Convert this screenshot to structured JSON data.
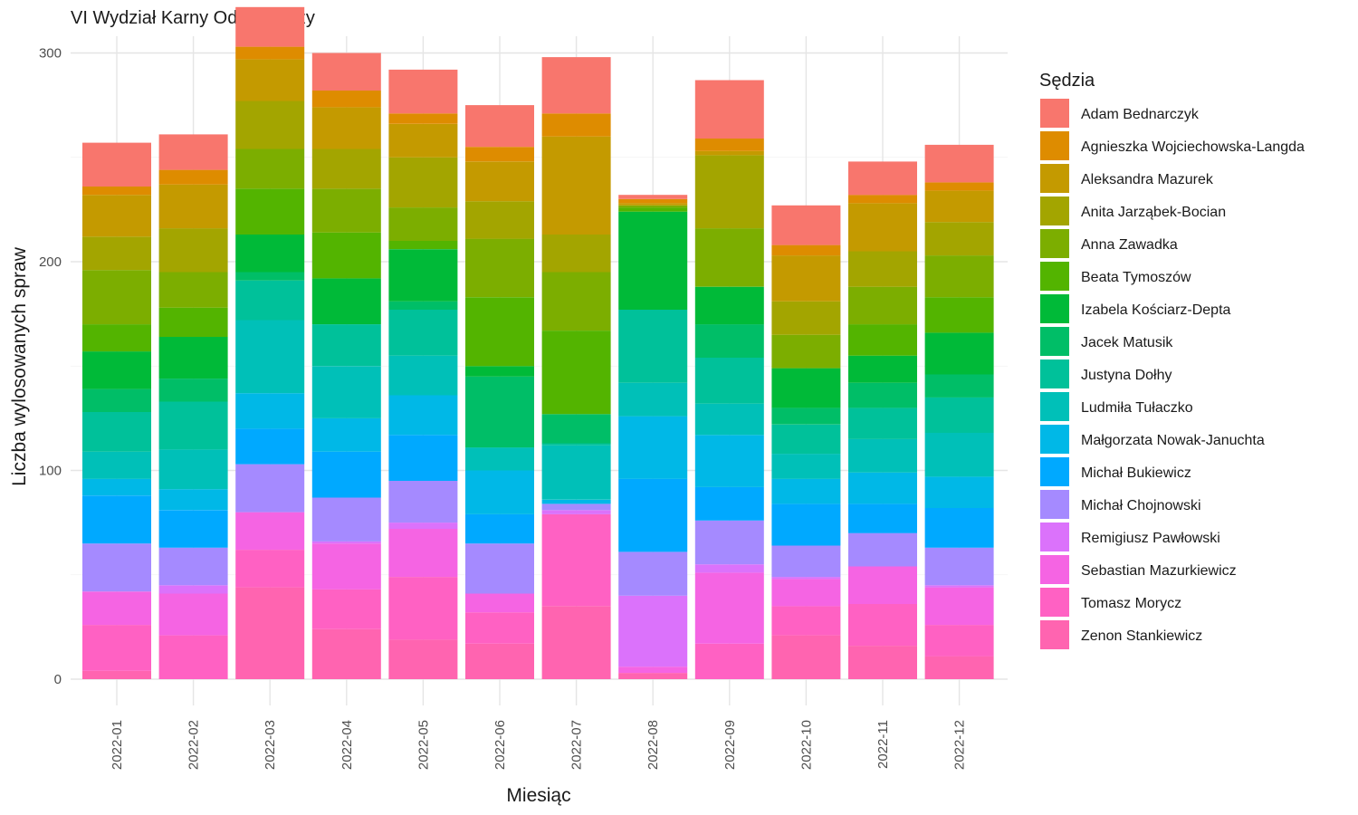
{
  "chart_data": {
    "type": "bar",
    "stacked": true,
    "title": "VI Wydział Karny Odwoławczy",
    "xlabel": "Miesiąc",
    "ylabel": "Liczba wylosowanych spraw",
    "ylim": [
      0,
      310
    ],
    "yticks": [
      0,
      100,
      200,
      300
    ],
    "grid": true,
    "legend_title": "Sędzia",
    "legend_position": "right",
    "categories": [
      "2022-01",
      "2022-02",
      "2022-03",
      "2022-04",
      "2022-05",
      "2022-06",
      "2022-07",
      "2022-08",
      "2022-09",
      "2022-10",
      "2022-11",
      "2022-12"
    ],
    "series": [
      {
        "name": "Zenon Stankiewicz",
        "color": "#FF64B0",
        "values": [
          4,
          0,
          44,
          24,
          19,
          17,
          35,
          3,
          0,
          21,
          16,
          11
        ]
      },
      {
        "name": "Tomasz Morycz",
        "color": "#FF61C3",
        "values": [
          22,
          21,
          18,
          19,
          30,
          15,
          44,
          0,
          17,
          14,
          20,
          15
        ]
      },
      {
        "name": "Sebastian Mazurkiewicz",
        "color": "#F564E3",
        "values": [
          16,
          20,
          18,
          22,
          23,
          9,
          0,
          3,
          34,
          13,
          18,
          18
        ]
      },
      {
        "name": "Remigiusz Pawłowski",
        "color": "#DB72FB",
        "values": [
          0,
          4,
          0,
          1,
          3,
          0,
          2,
          34,
          4,
          1,
          0,
          1
        ]
      },
      {
        "name": "Michał Chojnowski",
        "color": "#A58AFF",
        "values": [
          23,
          18,
          23,
          21,
          20,
          24,
          3,
          21,
          21,
          15,
          16,
          18
        ]
      },
      {
        "name": "Michał Bukiewicz",
        "color": "#00A9FF",
        "values": [
          23,
          18,
          17,
          22,
          22,
          14,
          0,
          35,
          16,
          20,
          14,
          19
        ]
      },
      {
        "name": "Małgorzata Nowak-Januchta",
        "color": "#00B8E7",
        "values": [
          8,
          10,
          17,
          16,
          19,
          21,
          2,
          30,
          25,
          12,
          15,
          15
        ]
      },
      {
        "name": "Ludmiła Tułaczko",
        "color": "#00C0B8",
        "values": [
          13,
          19,
          35,
          25,
          19,
          11,
          26,
          16,
          15,
          12,
          16,
          21
        ]
      },
      {
        "name": "Justyna Dołhy",
        "color": "#00C19A",
        "values": [
          19,
          23,
          19,
          20,
          22,
          0,
          1,
          35,
          22,
          14,
          15,
          17
        ]
      },
      {
        "name": "Jacek Matusik",
        "color": "#00BE67",
        "values": [
          11,
          11,
          4,
          0,
          4,
          34,
          14,
          0,
          16,
          8,
          12,
          11
        ]
      },
      {
        "name": "Izabela Kościarz-Depta",
        "color": "#00BA38",
        "values": [
          18,
          20,
          18,
          22,
          25,
          5,
          0,
          47,
          18,
          19,
          13,
          20
        ]
      },
      {
        "name": "Beata Tymoszów",
        "color": "#53B400",
        "values": [
          13,
          14,
          22,
          22,
          4,
          33,
          40,
          2,
          0,
          0,
          15,
          17
        ]
      },
      {
        "name": "Anna Zawadka",
        "color": "#7CAE00",
        "values": [
          26,
          17,
          19,
          21,
          16,
          28,
          28,
          1,
          28,
          16,
          18,
          20
        ]
      },
      {
        "name": "Anita Jarząbek-Bocian",
        "color": "#A3A500",
        "values": [
          16,
          21,
          23,
          19,
          24,
          18,
          18,
          0,
          35,
          16,
          17,
          16
        ]
      },
      {
        "name": "Aleksandra Mazurek",
        "color": "#C49A00",
        "values": [
          20,
          21,
          20,
          20,
          16,
          19,
          47,
          1,
          2,
          22,
          23,
          15
        ]
      },
      {
        "name": "Agnieszka Wojciechowska-Langda",
        "color": "#DE8C00",
        "values": [
          4,
          7,
          6,
          8,
          5,
          7,
          11,
          2,
          6,
          5,
          4,
          4
        ]
      },
      {
        "name": "Adam Bednarczyk",
        "color": "#F8766D",
        "values": [
          21,
          17,
          19,
          18,
          21,
          20,
          27,
          2,
          28,
          19,
          16,
          18
        ]
      }
    ],
    "legend_order": [
      "Adam Bednarczyk",
      "Agnieszka Wojciechowska-Langda",
      "Aleksandra Mazurek",
      "Anita Jarząbek-Bocian",
      "Anna Zawadka",
      "Beata Tymoszów",
      "Izabela Kościarz-Depta",
      "Jacek Matusik",
      "Justyna Dołhy",
      "Ludmiła Tułaczko",
      "Małgorzata Nowak-Januchta",
      "Michał Bukiewicz",
      "Michał Chojnowski",
      "Remigiusz Pawłowski",
      "Sebastian Mazurkiewicz",
      "Tomasz Morycz",
      "Zenon Stankiewicz"
    ]
  }
}
